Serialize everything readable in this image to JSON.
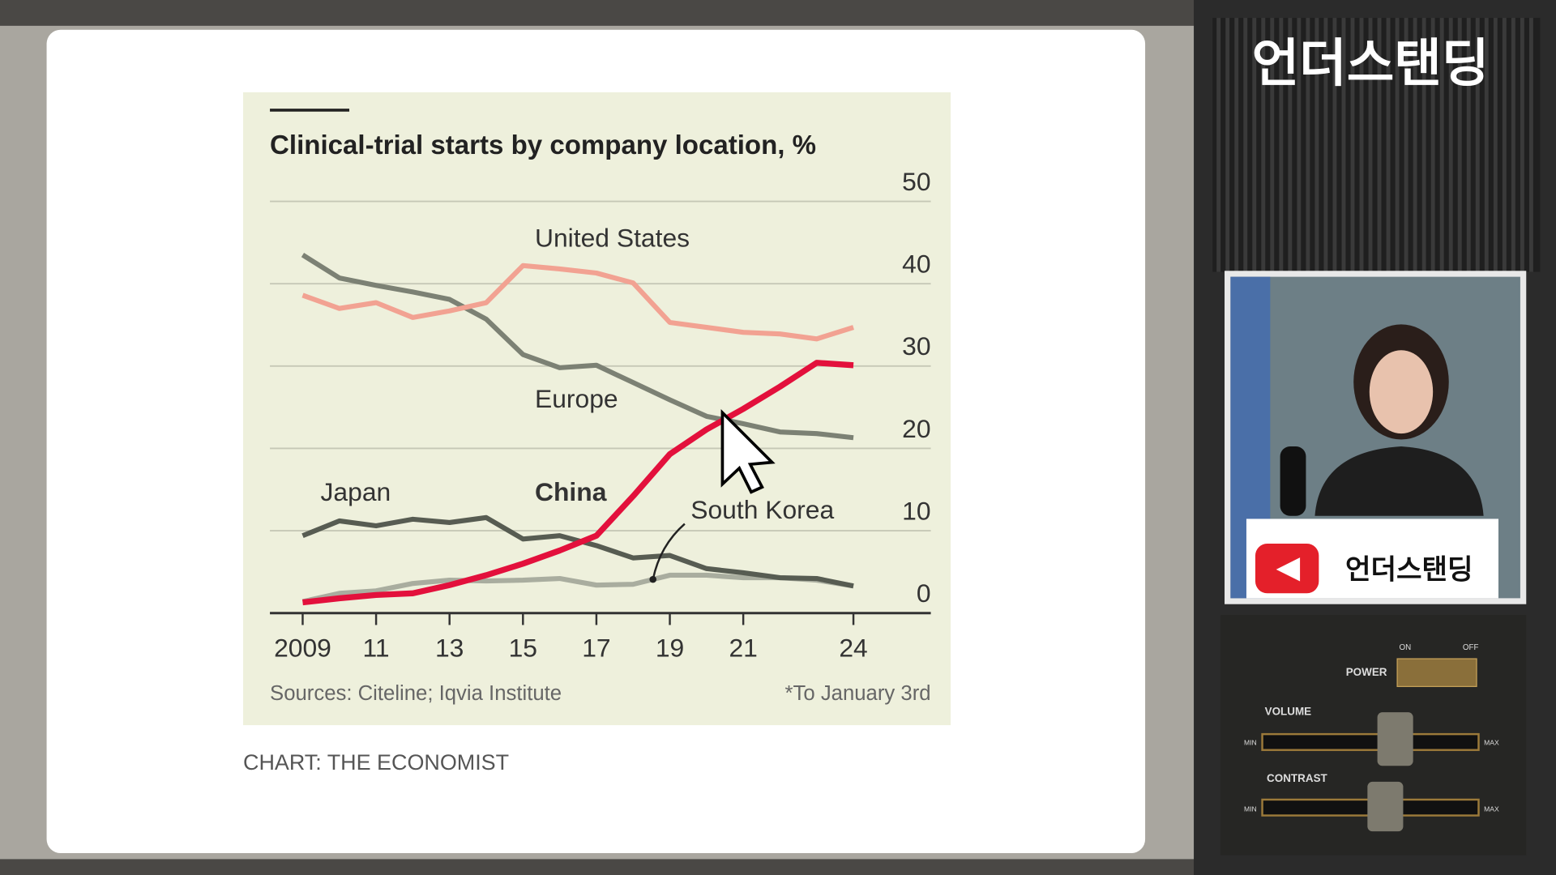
{
  "chart_data": {
    "type": "line",
    "title": "Clinical-trial starts by company location, %",
    "source": "Sources: Citeline; Iqvia Institute",
    "note": "*To January 3rd",
    "x": [
      2009,
      2010,
      2011,
      2012,
      2013,
      2014,
      2015,
      2016,
      2017,
      2018,
      2019,
      2020,
      2021,
      2022,
      2023,
      2024
    ],
    "xlim": [
      2009,
      2024
    ],
    "xticks": [
      {
        "value": 2009,
        "label": "2009"
      },
      {
        "value": 2011,
        "label": "11"
      },
      {
        "value": 2013,
        "label": "13"
      },
      {
        "value": 2015,
        "label": "15"
      },
      {
        "value": 2017,
        "label": "17"
      },
      {
        "value": 2019,
        "label": "19"
      },
      {
        "value": 2021,
        "label": "21"
      },
      {
        "value": 2024,
        "label": "24"
      }
    ],
    "ylim": [
      0,
      50
    ],
    "yticks": [
      0,
      10,
      20,
      30,
      40,
      50
    ],
    "grid": true,
    "series": [
      {
        "name": "South Korea",
        "color": "#a9ad9f",
        "values": [
          1.4,
          2.4,
          2.7,
          3.6,
          4,
          3.9,
          4,
          4.2,
          3.4,
          3.5,
          4.6,
          4.6,
          4.3,
          4.3,
          4,
          3.3
        ]
      },
      {
        "name": "Japan",
        "color": "#575c52",
        "values": [
          9.4,
          11.2,
          10.6,
          11.4,
          11,
          11.6,
          9,
          9.4,
          8.2,
          6.7,
          7,
          5.4,
          4.9,
          4.3,
          4.2,
          3.3
        ]
      },
      {
        "name": "Europe",
        "color": "#7c8174",
        "values": [
          43.5,
          40.7,
          39.8,
          39,
          38.1,
          35.7,
          31.4,
          29.8,
          30.1,
          28,
          25.9,
          23.9,
          23,
          22,
          21.8,
          21.3
        ]
      },
      {
        "name": "United States",
        "color": "#f2a292",
        "values": [
          38.6,
          37,
          37.7,
          35.9,
          36.7,
          37.7,
          42.2,
          41.8,
          41.3,
          40.1,
          35.3,
          34.7,
          34.1,
          33.9,
          33.3,
          34.7
        ]
      },
      {
        "name": "China",
        "color": "#e3103c",
        "values": [
          1.3,
          1.8,
          2.2,
          2.4,
          3.4,
          4.6,
          6,
          7.6,
          9.4,
          14.2,
          19.3,
          22.3,
          24.8,
          27.5,
          30.4,
          30.1
        ]
      }
    ]
  },
  "credit": "CHART: THE ECONOMIST",
  "channel_title": "언더스탠딩",
  "video_overlay": {
    "channel_name": "언더스탠딩"
  },
  "control_panel": {
    "on": "ON",
    "off": "OFF",
    "power": "POWER",
    "volume": "VOLUME",
    "contrast": "CONTRAST",
    "min": "MIN",
    "max": "MAX"
  }
}
